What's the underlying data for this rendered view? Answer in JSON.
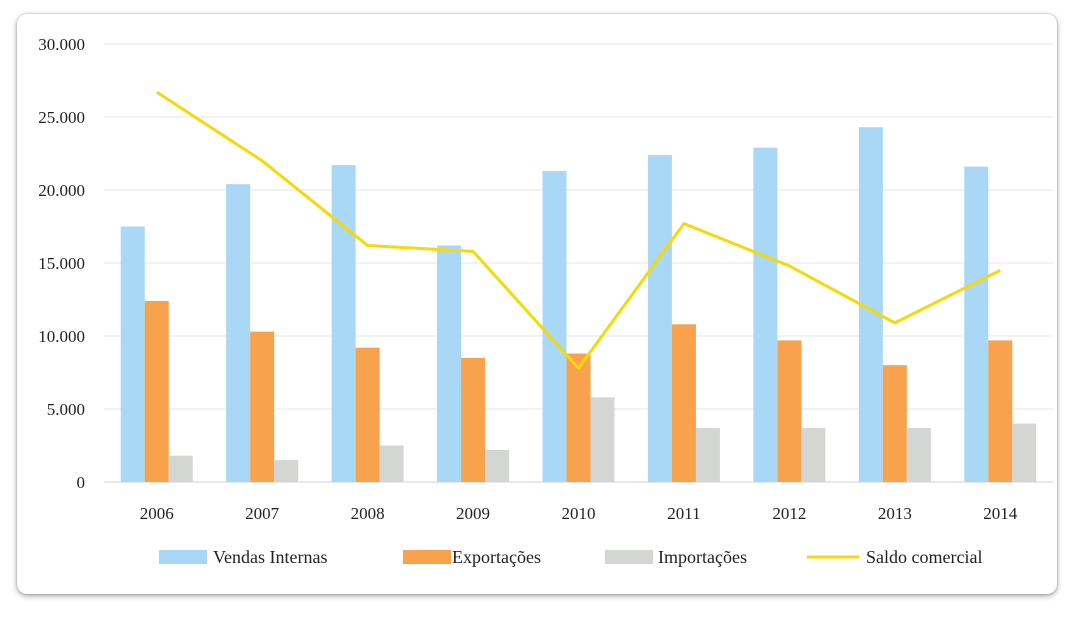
{
  "chart_data": {
    "type": "bar",
    "categories": [
      "2006",
      "2007",
      "2008",
      "2009",
      "2010",
      "2011",
      "2012",
      "2013",
      "2014"
    ],
    "series": [
      {
        "name": "Vendas Internas",
        "kind": "bar",
        "color": "#a9d8f7",
        "values": [
          17500,
          20400,
          21700,
          16200,
          21300,
          22400,
          22900,
          24300,
          21600
        ]
      },
      {
        "name": "Exportações",
        "kind": "bar",
        "color": "#f9a24d",
        "values": [
          12400,
          10300,
          9200,
          8500,
          8800,
          10800,
          9700,
          8000,
          9700
        ]
      },
      {
        "name": "Importações",
        "kind": "bar",
        "color": "#d4d6d4",
        "values": [
          1800,
          1500,
          2500,
          2200,
          5800,
          3700,
          3700,
          3700,
          4000
        ]
      },
      {
        "name": "Saldo comercial",
        "kind": "line",
        "color": "#f5d90a",
        "values": [
          26700,
          22000,
          16200,
          15800,
          7800,
          17700,
          14800,
          10900,
          14500
        ]
      }
    ],
    "yticks": [
      "0",
      "5.000",
      "10.000",
      "15.000",
      "20.000",
      "25.000",
      "30.000"
    ],
    "ylim": [
      0,
      30000
    ],
    "grid": true,
    "legend_position": "bottom"
  }
}
